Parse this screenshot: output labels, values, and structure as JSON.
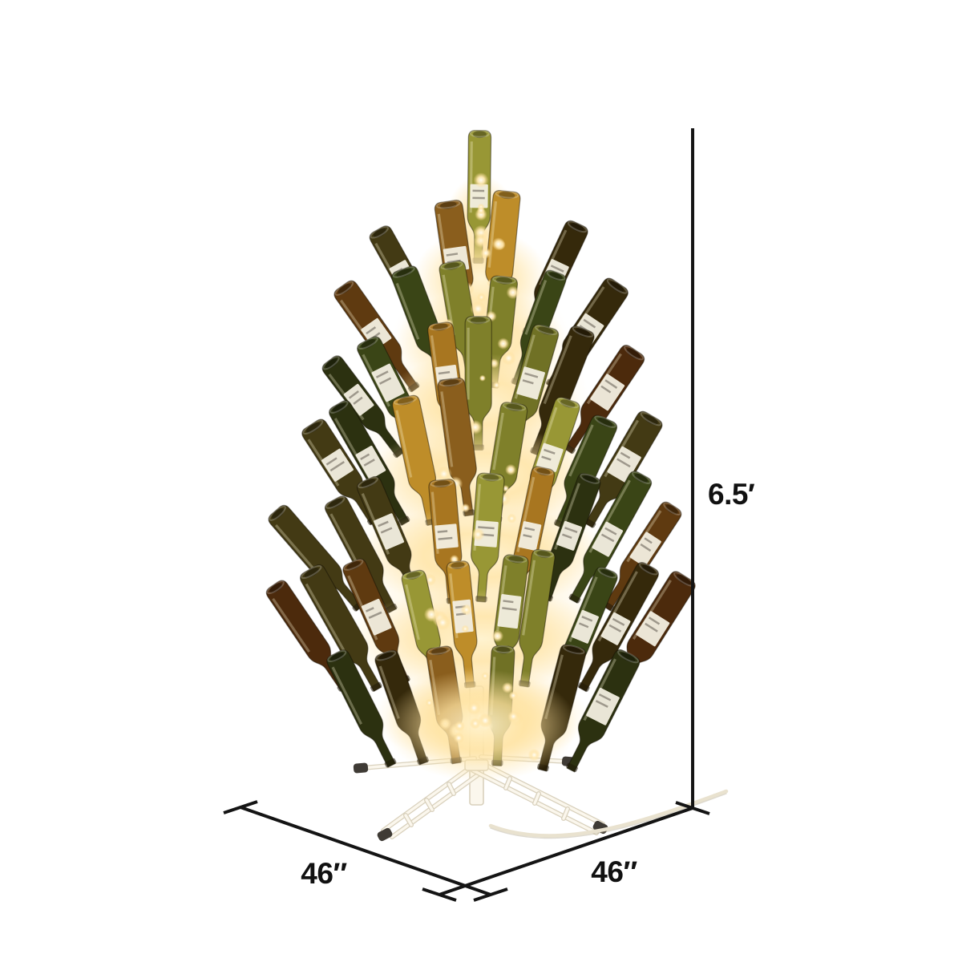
{
  "background_color": "#ffffff",
  "annotation": {
    "line_color": "#141414",
    "height_label": "6.5′",
    "base_width_label": "46″",
    "base_depth_label": "46″"
  },
  "photo": {
    "alt": "Lighted wine bottle Christmas tree: tiers of inverted green and amber wine bottles with warm white lights on a white folding metal tree stand",
    "glow_color": "#ffe3a1",
    "light_color": "#fff8e0",
    "label_color": "#f3efe2",
    "label_line_color": "#8b8579",
    "stand_color": "#fbf7ed",
    "stand_edge_color": "#d9d1bd",
    "foot_color": "#3f3b35",
    "cord_color": "#e9e2cf",
    "bottle_colors_outer": [
      "#2c3110",
      "#3a4516",
      "#4c2a0c",
      "#5f3a10",
      "#433a14",
      "#35290b"
    ],
    "bottle_colors_inner": [
      "#6d751f",
      "#8a8f2c",
      "#9c6a14",
      "#b5841e",
      "#7a4e10",
      "#5c6419"
    ]
  }
}
